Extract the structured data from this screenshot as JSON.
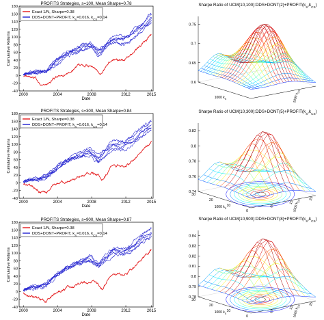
{
  "chart_data": [
    {
      "type": "line",
      "title": "PROFITS Strategies, s=100, Mean Sharpe=0.78",
      "xlabel": "Date",
      "ylabel": "Cumulative Returns",
      "xlim": [
        1999.5,
        2015.2
      ],
      "ylim": [
        -40,
        180
      ],
      "xticks": [
        "2000",
        "2004",
        "2008",
        "2012",
        "2015"
      ],
      "yticks": [
        "-40",
        "-20",
        "0",
        "20",
        "40",
        "60",
        "80",
        "100",
        "120",
        "140",
        "160",
        "180"
      ],
      "legend_position": "top-left",
      "grid": false,
      "series": [
        {
          "name": "Exact 1/N, Sharpe=0.38",
          "color": "#e41a1c",
          "x": [
            2000,
            2001,
            2002,
            2002.7,
            2003.5,
            2005,
            2007.8,
            2008.8,
            2009.2,
            2010.5,
            2011.7,
            2013,
            2015
          ],
          "values": [
            0,
            -8,
            -20,
            -27,
            -10,
            8,
            30,
            18,
            10,
            45,
            40,
            62,
            108
          ]
        },
        {
          "name": "DDS+DONT+PROFIT, k_S=0.016, k_CS=0.14",
          "color": "#1f1fcf",
          "x": [
            2000,
            2001,
            2002,
            2002.7,
            2003.5,
            2005,
            2007.8,
            2008.8,
            2009.2,
            2010.5,
            2011.7,
            2013,
            2015
          ],
          "values": [
            5,
            8,
            10,
            12,
            30,
            55,
            78,
            60,
            68,
            95,
            90,
            110,
            148
          ]
        }
      ]
    },
    {
      "type": "line",
      "title": "PROFITS Strategies, s=300, Mean Sharpe=0.84",
      "xlabel": "Date",
      "ylabel": "Cumulative Returns",
      "xlim": [
        1999.5,
        2015.2
      ],
      "ylim": [
        -40,
        180
      ],
      "xticks": [
        "2000",
        "2004",
        "2008",
        "2012",
        "2015"
      ],
      "yticks": [
        "-40",
        "-20",
        "0",
        "20",
        "40",
        "60",
        "80",
        "100",
        "120",
        "140",
        "160",
        "180"
      ],
      "legend_position": "top-left",
      "grid": false,
      "series": [
        {
          "name": "Exact 1/N, Sharpe=0.38",
          "color": "#e41a1c",
          "x": [
            2000,
            2001,
            2002,
            2002.7,
            2003.5,
            2005,
            2007.8,
            2008.8,
            2009.2,
            2010.5,
            2011.7,
            2013,
            2015
          ],
          "values": [
            0,
            -8,
            -20,
            -27,
            -10,
            8,
            30,
            18,
            10,
            45,
            40,
            62,
            108
          ]
        },
        {
          "name": "DDS+DONT+PROFIT, k_S=0.016, k_CS=0.14",
          "color": "#1f1fcf",
          "x": [
            2000,
            2001,
            2002,
            2002.7,
            2003.5,
            2005,
            2007.8,
            2008.8,
            2009.2,
            2010.5,
            2011.7,
            2013,
            2015
          ],
          "values": [
            5,
            8,
            12,
            14,
            32,
            58,
            82,
            62,
            72,
            100,
            95,
            115,
            150
          ]
        }
      ]
    },
    {
      "type": "line",
      "title": "PROFITS Strategies, s=900, Mean Sharpe=0.87",
      "xlabel": "Date",
      "ylabel": "Cumulative Returns",
      "xlim": [
        1999.5,
        2015.2
      ],
      "ylim": [
        -40,
        180
      ],
      "xticks": [
        "2000",
        "2004",
        "2008",
        "2012",
        "2015"
      ],
      "yticks": [
        "-40",
        "-20",
        "0",
        "20",
        "40",
        "60",
        "80",
        "100",
        "120",
        "140",
        "160",
        "180"
      ],
      "legend_position": "top-left",
      "grid": false,
      "series": [
        {
          "name": "Exact 1/N, Sharpe=0.38",
          "color": "#e41a1c",
          "x": [
            2000,
            2001,
            2002,
            2002.7,
            2003.5,
            2005,
            2007.8,
            2008.8,
            2009.2,
            2010.5,
            2011.7,
            2013,
            2015
          ],
          "values": [
            0,
            -8,
            -20,
            -27,
            -10,
            8,
            30,
            18,
            10,
            45,
            40,
            62,
            108
          ]
        },
        {
          "name": "DDS+DONT+PROFIT, k_S=0.016, k_CS=0.14",
          "color": "#1f1fcf",
          "x": [
            2000,
            2001,
            2002,
            2002.7,
            2003.5,
            2005,
            2007.8,
            2008.8,
            2009.2,
            2010.5,
            2011.7,
            2013,
            2015
          ],
          "values": [
            5,
            10,
            14,
            16,
            36,
            62,
            86,
            66,
            76,
            105,
            100,
            120,
            155
          ]
        }
      ]
    },
    {
      "type": "surface3d",
      "title": "Sharpe Ratio of UCM(10,100):DDS+DONT(2)+PROFIT(k_S,k_CS)",
      "xlabel": "1000 k_S",
      "ylabel": "1000 k_CS",
      "zlim": [
        0.6,
        0.77
      ],
      "zticks": [
        "0.6",
        "0.65",
        "0.7",
        "0.75"
      ],
      "colormap": "jet"
    },
    {
      "type": "surface3d",
      "title": "Sharpe Ratio of UCM(10,300):DDS+DONT(5)+PROFIT(k_S,k_CS)",
      "xlabel": "1000 k_S",
      "ylabel": "1000 k_CS",
      "zlim": [
        0.74,
        0.83
      ],
      "zticks": [
        "0.74",
        "0.76",
        "0.78",
        "0.8",
        "0.82"
      ],
      "base_ticks_left": [
        "30",
        "20",
        "10",
        "0"
      ],
      "base_ticks_right": [
        "10",
        "15",
        "25"
      ],
      "colormap": "jet"
    },
    {
      "type": "surface3d",
      "title": "Sharpe Ratio of UCM(10,900):DDS+DONT(8)+PROFIT(k_S,k_CS)",
      "xlabel": "1000 k_S",
      "ylabel": "1000 k_CS",
      "zlim": [
        0.78,
        0.845
      ],
      "zticks": [
        "0.78",
        "0.79",
        "0.8",
        "0.81",
        "0.82",
        "0.83",
        "0.84"
      ],
      "base_ticks_left": [
        "30",
        "20",
        "10",
        "0"
      ],
      "base_ticks_right": [
        "10",
        "15",
        "25"
      ],
      "colormap": "jet"
    }
  ]
}
